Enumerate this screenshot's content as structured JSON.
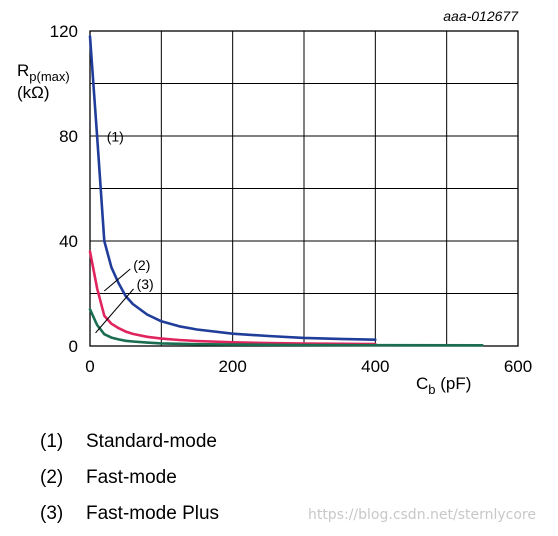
{
  "figure_id": "aaa-012677",
  "watermark": "https://blog.csdn.net/sternlycore",
  "legend": [
    {
      "key": "(1)",
      "label": "Standard-mode",
      "color": "#1f3d99"
    },
    {
      "key": "(2)",
      "label": "Fast-mode",
      "color": "#e0245e"
    },
    {
      "key": "(3)",
      "label": "Fast-mode Plus",
      "color": "#1a6e4f"
    }
  ],
  "chart_data": {
    "type": "line",
    "title": "",
    "xlabel_main": "C",
    "xlabel_sub": "b",
    "xlabel_unit": " (pF)",
    "ylabel_main": "R",
    "ylabel_sub": "p(max)",
    "ylabel_unit": "(kΩ)",
    "xlim": [
      0,
      600
    ],
    "ylim": [
      0,
      120
    ],
    "xticks": [
      0,
      200,
      400,
      600
    ],
    "yticks": [
      0,
      40,
      80,
      120
    ],
    "grid": true,
    "series": [
      {
        "name": "(1)",
        "color": "#1f3d99",
        "x": [
          0,
          10,
          20,
          30,
          40,
          50,
          60,
          80,
          100,
          125,
          150,
          200,
          250,
          300,
          350,
          400
        ],
        "y": [
          118,
          80,
          40,
          30,
          24,
          19,
          16,
          12,
          9.4,
          7.5,
          6.3,
          4.7,
          3.8,
          3.1,
          2.7,
          2.4
        ]
      },
      {
        "name": "(2)",
        "color": "#e0245e",
        "x": [
          0,
          10,
          20,
          30,
          40,
          50,
          60,
          80,
          100,
          125,
          150,
          200,
          250,
          300,
          350,
          400
        ],
        "y": [
          36,
          22,
          11.5,
          8.5,
          6.8,
          5.5,
          4.6,
          3.5,
          2.8,
          2.3,
          1.9,
          1.4,
          1.1,
          0.95,
          0.82,
          0.72
        ]
      },
      {
        "name": "(3)",
        "color": "#1a6e4f",
        "x": [
          0,
          10,
          20,
          30,
          40,
          50,
          60,
          80,
          100,
          150,
          200,
          300,
          400,
          550
        ],
        "y": [
          14,
          8,
          4.5,
          3.2,
          2.5,
          2.0,
          1.7,
          1.3,
          1.0,
          0.7,
          0.55,
          0.38,
          0.3,
          0.25
        ]
      }
    ],
    "annotations": [
      {
        "text": "(1)",
        "series": 0,
        "x": 8,
        "y": 78
      },
      {
        "text": "(2)",
        "series": 1,
        "x": 20,
        "y": 24
      },
      {
        "text": "(3)",
        "series": 2,
        "x": 5,
        "y": 5
      }
    ]
  }
}
